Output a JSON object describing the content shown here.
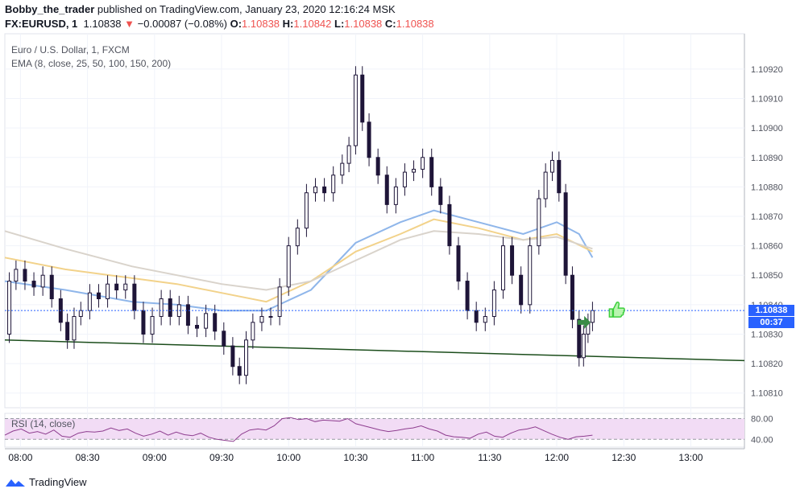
{
  "header": {
    "author": "Bobby_the_trader",
    "published_text": "published on TradingView.com, January 23, 2020 12:16:24 MSK",
    "symbol": "FX:EURUSD, 1",
    "last": "1.10838",
    "change_arrow": "▼",
    "change": "−0.00087 (−0.08%)",
    "o_label": "O:",
    "o": "1.10838",
    "h_label": "H:",
    "h": "1.10842",
    "l_label": "L:",
    "l": "1.10838",
    "c_label": "C:",
    "c": "1.10838"
  },
  "legend": {
    "title": "Euro / U.S. Dollar, 1, FXCM",
    "ema": "EMA (8, close, 25, 50, 100, 150, 200)"
  },
  "rsi": {
    "label": "RSI (14, close)",
    "levels": [
      "80.00",
      "40.00"
    ]
  },
  "price_badge": {
    "value": "1.10838",
    "countdown": "00:37"
  },
  "footer": {
    "brand": "TradingView"
  },
  "colors": {
    "up_body": "#ffffff",
    "down_body": "#1e1538",
    "wick": "#1e1538",
    "trendline": "#1b4d1b",
    "ema_fast": "#8fb6ea",
    "ema_mid": "#f2d28a",
    "ema_slow": "#d9d3cb",
    "rsi_line": "#8e3d8f",
    "rsi_band": "#f2dcf5",
    "badge": "#2962ff"
  },
  "chart_data": {
    "type": "candlestick",
    "price_ticks": [
      "1.10920",
      "1.10910",
      "1.10900",
      "1.10890",
      "1.10880",
      "1.10870",
      "1.10860",
      "1.10850",
      "1.10840",
      "1.10830",
      "1.10820",
      "1.10810"
    ],
    "time_ticks": [
      "08:00",
      "08:30",
      "09:00",
      "09:30",
      "10:00",
      "10:30",
      "11:00",
      "11:30",
      "12:00",
      "12:30",
      "13:00"
    ],
    "ylim": [
      1.10805,
      1.10932
    ],
    "xlim": [
      "07:53",
      "13:24"
    ],
    "close_series": [
      [
        "07:53",
        1.1083
      ],
      [
        "07:55",
        1.10848
      ],
      [
        "07:58",
        1.10852
      ],
      [
        "08:02",
        1.10848
      ],
      [
        "08:06",
        1.10846
      ],
      [
        "08:10",
        1.1085
      ],
      [
        "08:14",
        1.10842
      ],
      [
        "08:18",
        1.10834
      ],
      [
        "08:21",
        1.10828
      ],
      [
        "08:24",
        1.10836
      ],
      [
        "08:27",
        1.10838
      ],
      [
        "08:31",
        1.10844
      ],
      [
        "08:35",
        1.10842
      ],
      [
        "08:39",
        1.10847
      ],
      [
        "08:43",
        1.10845
      ],
      [
        "08:47",
        1.10847
      ],
      [
        "08:51",
        1.10838
      ],
      [
        "08:55",
        1.1083
      ],
      [
        "08:59",
        1.10836
      ],
      [
        "09:03",
        1.10842
      ],
      [
        "09:07",
        1.10836
      ],
      [
        "09:11",
        1.1084
      ],
      [
        "09:15",
        1.10833
      ],
      [
        "09:19",
        1.10832
      ],
      [
        "09:23",
        1.10837
      ],
      [
        "09:27",
        1.10831
      ],
      [
        "09:31",
        1.10826
      ],
      [
        "09:35",
        1.10819
      ],
      [
        "09:38",
        1.10816
      ],
      [
        "09:41",
        1.10828
      ],
      [
        "09:44",
        1.10834
      ],
      [
        "09:48",
        1.10836
      ],
      [
        "09:52",
        1.10836
      ],
      [
        "09:56",
        1.10846
      ],
      [
        "10:00",
        1.1086
      ],
      [
        "10:04",
        1.10866
      ],
      [
        "10:08",
        1.10878
      ],
      [
        "10:12",
        1.1088
      ],
      [
        "10:16",
        1.10878
      ],
      [
        "10:20",
        1.10884
      ],
      [
        "10:24",
        1.10888
      ],
      [
        "10:27",
        1.10894
      ],
      [
        "10:30",
        1.10918
      ],
      [
        "10:33",
        1.10902
      ],
      [
        "10:36",
        1.1089
      ],
      [
        "10:40",
        1.10884
      ],
      [
        "10:44",
        1.10874
      ],
      [
        "10:48",
        1.1088
      ],
      [
        "10:52",
        1.10885
      ],
      [
        "10:56",
        1.10886
      ],
      [
        "11:00",
        1.1089
      ],
      [
        "11:04",
        1.1088
      ],
      [
        "11:08",
        1.10874
      ],
      [
        "11:12",
        1.1086
      ],
      [
        "11:16",
        1.10848
      ],
      [
        "11:20",
        1.10838
      ],
      [
        "11:24",
        1.10834
      ],
      [
        "11:28",
        1.10836
      ],
      [
        "11:32",
        1.10845
      ],
      [
        "11:36",
        1.1086
      ],
      [
        "11:40",
        1.1085
      ],
      [
        "11:44",
        1.1084
      ],
      [
        "11:48",
        1.1086
      ],
      [
        "11:52",
        1.10876
      ],
      [
        "11:55",
        1.10885
      ],
      [
        "11:58",
        1.10889
      ],
      [
        "12:01",
        1.10878
      ],
      [
        "12:04",
        1.1085
      ],
      [
        "12:07",
        1.10835
      ],
      [
        "12:10",
        1.10822
      ],
      [
        "12:12",
        1.1083
      ],
      [
        "12:14",
        1.10834
      ],
      [
        "12:16",
        1.10838
      ]
    ],
    "ema_series": [
      {
        "values": [
          [
            "07:53",
            1.10848
          ],
          [
            "08:20",
            1.10845
          ],
          [
            "08:50",
            1.10841
          ],
          [
            "09:10",
            1.1084
          ],
          [
            "09:30",
            1.10838
          ],
          [
            "09:50",
            1.10838
          ],
          [
            "10:10",
            1.10845
          ],
          [
            "10:30",
            1.10861
          ],
          [
            "10:50",
            1.10868
          ],
          [
            "11:05",
            1.10872
          ],
          [
            "11:25",
            1.10868
          ],
          [
            "11:45",
            1.10864
          ],
          [
            "12:00",
            1.10868
          ],
          [
            "12:10",
            1.10864
          ],
          [
            "12:16",
            1.10856
          ]
        ]
      },
      {
        "values": [
          [
            "07:53",
            1.10856
          ],
          [
            "08:20",
            1.10852
          ],
          [
            "08:50",
            1.10849
          ],
          [
            "09:10",
            1.10847
          ],
          [
            "09:30",
            1.10844
          ],
          [
            "09:50",
            1.10841
          ],
          [
            "10:10",
            1.10848
          ],
          [
            "10:30",
            1.10858
          ],
          [
            "10:50",
            1.10864
          ],
          [
            "11:05",
            1.10869
          ],
          [
            "11:25",
            1.10866
          ],
          [
            "11:45",
            1.10862
          ],
          [
            "12:00",
            1.10864
          ],
          [
            "12:16",
            1.10858
          ]
        ]
      },
      {
        "values": [
          [
            "07:53",
            1.10865
          ],
          [
            "08:20",
            1.10859
          ],
          [
            "08:50",
            1.10853
          ],
          [
            "09:10",
            1.1085
          ],
          [
            "09:30",
            1.10847
          ],
          [
            "09:50",
            1.10845
          ],
          [
            "10:10",
            1.10848
          ],
          [
            "10:30",
            1.10855
          ],
          [
            "10:50",
            1.10862
          ],
          [
            "11:05",
            1.10865
          ],
          [
            "11:25",
            1.10864
          ],
          [
            "11:45",
            1.10862
          ],
          [
            "12:00",
            1.10863
          ],
          [
            "12:16",
            1.10859
          ]
        ]
      }
    ],
    "trendline": [
      [
        "07:53",
        1.10828
      ],
      [
        "13:24",
        1.10821
      ]
    ],
    "current_price": 1.10838,
    "rsi_values": [
      48,
      56,
      60,
      52,
      55,
      50,
      58,
      46,
      44,
      52,
      55,
      54,
      56,
      62,
      57,
      60,
      52,
      46,
      50,
      56,
      48,
      54,
      49,
      47,
      52,
      44,
      40,
      38,
      36,
      50,
      58,
      60,
      58,
      66,
      80,
      82,
      78,
      80,
      74,
      77,
      76,
      75,
      80,
      70,
      66,
      62,
      58,
      55,
      57,
      60,
      62,
      66,
      60,
      56,
      48,
      45,
      44,
      42,
      50,
      54,
      46,
      44,
      52,
      58,
      60,
      64,
      57,
      50,
      44,
      40,
      45,
      46,
      48
    ],
    "rsi_ylim": [
      25,
      90
    ],
    "rsi_levels": [
      80,
      40
    ]
  }
}
